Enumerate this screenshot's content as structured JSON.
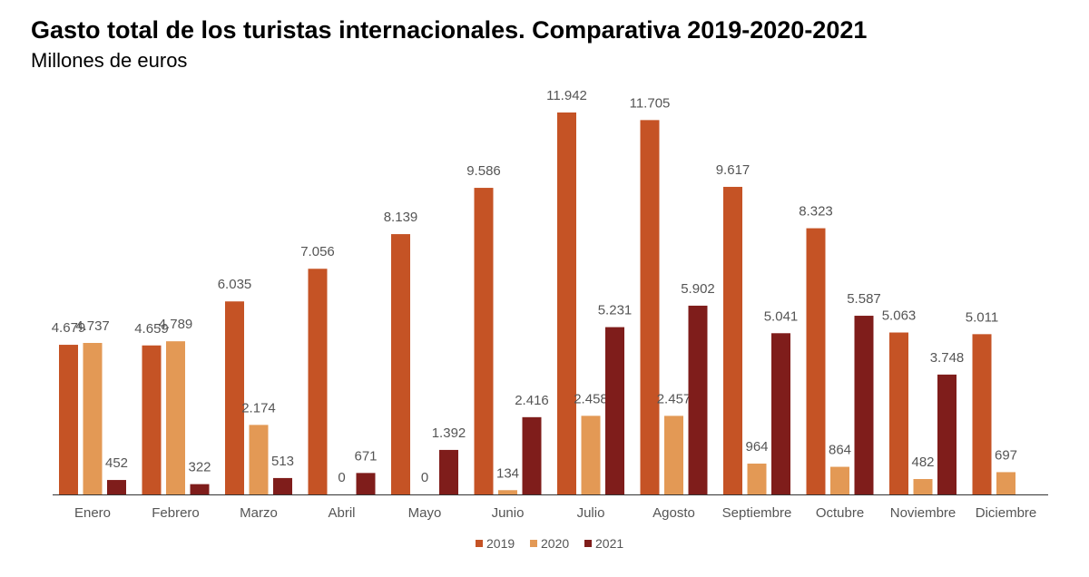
{
  "header": {
    "title": "Gasto total de los turistas internacionales. Comparativa 2019-2020-2021",
    "subtitle": "Millones de euros"
  },
  "colors": {
    "2019": "#c55325",
    "2020": "#e39955",
    "2021": "#7f1d1b",
    "axis": "#333333",
    "text": "#555555"
  },
  "chart_data": {
    "type": "bar",
    "title": "Gasto total de los turistas internacionales. Comparativa 2019-2020-2021",
    "subtitle": "Millones de euros",
    "categories": [
      "Enero",
      "Febrero",
      "Marzo",
      "Abril",
      "Mayo",
      "Junio",
      "Julio",
      "Agosto",
      "Septiembre",
      "Octubre",
      "Noviembre",
      "Diciembre"
    ],
    "series": [
      {
        "name": "2019",
        "values": [
          4679,
          4659,
          6035,
          7056,
          8139,
          9586,
          11942,
          11705,
          9617,
          8323,
          5063,
          5011
        ],
        "labels": [
          "4.679",
          "4.659",
          "6.035",
          "7.056",
          "8.139",
          "9.586",
          "11.942",
          "11.705",
          "9.617",
          "8.323",
          "5.063",
          "5.011"
        ]
      },
      {
        "name": "2020",
        "values": [
          4737,
          4789,
          2174,
          0,
          0,
          134,
          2458,
          2457,
          964,
          864,
          482,
          697
        ],
        "labels": [
          "4.737",
          "4.789",
          "2.174",
          "0",
          "0",
          "134",
          "2.458",
          "2.457",
          "964",
          "864",
          "482",
          "697"
        ]
      },
      {
        "name": "2021",
        "values": [
          452,
          322,
          513,
          671,
          1392,
          2416,
          5231,
          5902,
          5041,
          5587,
          3748,
          null
        ],
        "labels": [
          "452",
          "322",
          "513",
          "671",
          "1.392",
          "2.416",
          "5.231",
          "5.902",
          "5.041",
          "5.587",
          "3.748",
          ""
        ]
      }
    ],
    "ylim": [
      0,
      12000
    ],
    "grid": false,
    "legend": "bottom"
  }
}
